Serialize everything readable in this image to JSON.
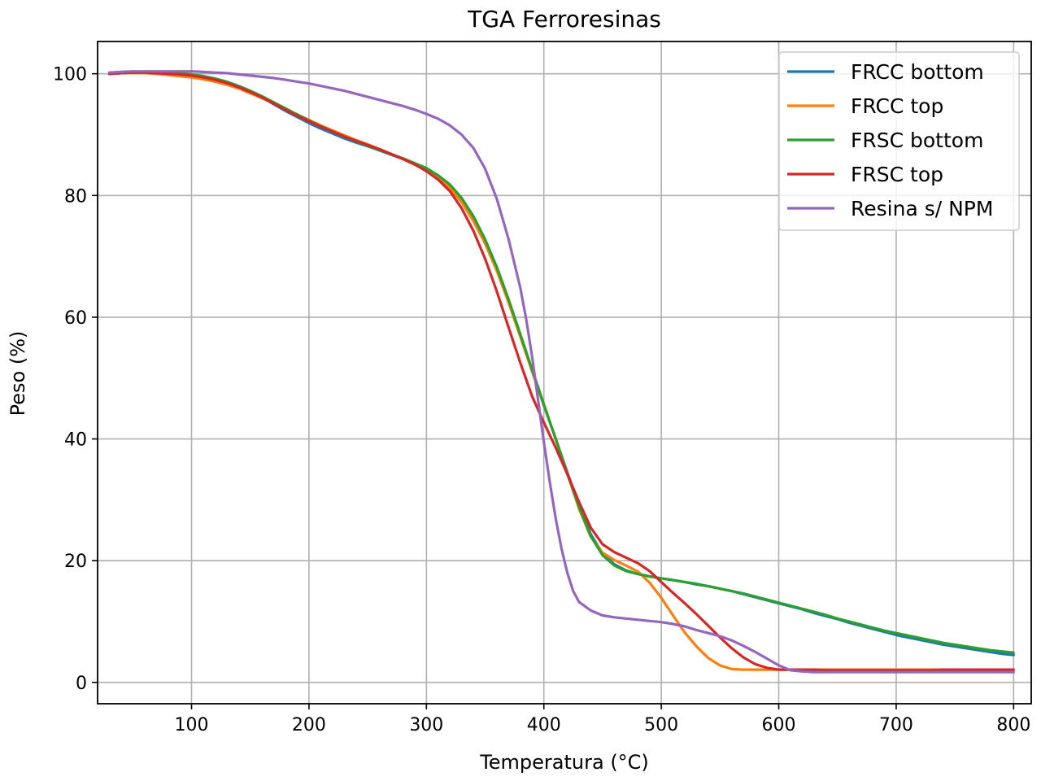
{
  "chart_data": {
    "type": "line",
    "title": "TGA Ferroresinas",
    "xlabel": "Temperatura (°C)",
    "ylabel": "Peso (%)",
    "xlim": [
      20,
      815
    ],
    "ylim": [
      -3.5,
      105.3
    ],
    "xticks": [
      100,
      200,
      300,
      400,
      500,
      600,
      700,
      800
    ],
    "yticks": [
      0,
      20,
      40,
      60,
      80,
      100
    ],
    "grid": true,
    "legend_position": "top-right",
    "series": [
      {
        "name": "FRCC bottom",
        "color": "#1f77b4",
        "x": [
          30,
          40,
          50,
          60,
          70,
          80,
          90,
          100,
          110,
          120,
          130,
          140,
          150,
          160,
          170,
          180,
          190,
          200,
          210,
          220,
          230,
          240,
          250,
          260,
          270,
          280,
          290,
          300,
          310,
          320,
          330,
          340,
          350,
          360,
          370,
          380,
          390,
          400,
          410,
          420,
          430,
          440,
          450,
          460,
          470,
          480,
          490,
          500,
          510,
          520,
          530,
          540,
          550,
          560,
          570,
          580,
          590,
          600,
          610,
          620,
          630,
          640,
          650,
          660,
          670,
          680,
          690,
          700,
          710,
          720,
          730,
          740,
          750,
          760,
          770,
          780,
          790,
          800
        ],
        "y": [
          100.0,
          100.1,
          100.2,
          100.2,
          100.2,
          100.1,
          100.0,
          99.8,
          99.5,
          99.0,
          98.5,
          97.8,
          97.0,
          96.1,
          95.0,
          93.9,
          92.9,
          91.9,
          91.0,
          90.2,
          89.4,
          88.7,
          88.1,
          87.4,
          86.7,
          86.0,
          85.2,
          84.2,
          83.0,
          81.3,
          79.0,
          76.0,
          72.3,
          67.8,
          62.5,
          56.9,
          51.1,
          45.5,
          40.1,
          34.5,
          29.0,
          24.3,
          21.2,
          19.4,
          18.4,
          17.8,
          17.4,
          17.1,
          16.8,
          16.5,
          16.1,
          15.8,
          15.4,
          15.0,
          14.5,
          14.0,
          13.5,
          13.0,
          12.5,
          12.0,
          11.4,
          10.9,
          10.4,
          9.8,
          9.3,
          8.8,
          8.3,
          7.8,
          7.4,
          7.0,
          6.6,
          6.2,
          5.9,
          5.6,
          5.3,
          5.0,
          4.7,
          4.5
        ]
      },
      {
        "name": "FRCC top",
        "color": "#ff7f0e",
        "x": [
          30,
          40,
          50,
          60,
          70,
          80,
          90,
          100,
          110,
          120,
          130,
          140,
          150,
          160,
          170,
          180,
          190,
          200,
          210,
          220,
          230,
          240,
          250,
          260,
          270,
          280,
          290,
          300,
          310,
          320,
          330,
          340,
          350,
          360,
          370,
          380,
          390,
          400,
          410,
          420,
          430,
          440,
          450,
          460,
          470,
          480,
          490,
          500,
          510,
          520,
          530,
          540,
          550,
          560,
          570,
          580,
          590,
          600,
          610,
          620,
          630,
          640,
          650,
          660,
          670,
          680,
          690,
          700,
          710,
          720,
          730,
          740,
          750,
          760,
          770,
          780,
          790,
          800
        ],
        "y": [
          100.0,
          100.1,
          100.1,
          100.1,
          100.0,
          99.8,
          99.6,
          99.4,
          99.1,
          98.7,
          98.2,
          97.6,
          96.8,
          96.0,
          95.1,
          94.2,
          93.3,
          92.4,
          91.5,
          90.7,
          89.9,
          89.1,
          88.4,
          87.6,
          86.8,
          86.0,
          85.1,
          84.1,
          82.9,
          81.2,
          78.9,
          75.8,
          72.1,
          67.6,
          62.4,
          56.8,
          51.1,
          45.6,
          40.1,
          34.3,
          28.5,
          23.9,
          21.3,
          20.1,
          19.2,
          18.2,
          16.4,
          13.9,
          11.0,
          8.2,
          5.9,
          4.0,
          2.8,
          2.2,
          2.1,
          2.1,
          2.1,
          2.1,
          2.1,
          2.1,
          2.1,
          2.1,
          2.1,
          2.1,
          2.1,
          2.1,
          2.1,
          2.1,
          2.1,
          2.1,
          2.1,
          2.1,
          2.1,
          2.1,
          2.1,
          2.1,
          2.1,
          2.1
        ]
      },
      {
        "name": "FRSC bottom",
        "color": "#2ca02c",
        "x": [
          30,
          40,
          50,
          60,
          70,
          80,
          90,
          100,
          110,
          120,
          130,
          140,
          150,
          160,
          170,
          180,
          190,
          200,
          210,
          220,
          230,
          240,
          250,
          260,
          270,
          280,
          290,
          300,
          310,
          320,
          330,
          340,
          350,
          360,
          370,
          380,
          390,
          400,
          410,
          420,
          430,
          440,
          450,
          460,
          470,
          480,
          490,
          500,
          510,
          520,
          530,
          540,
          550,
          560,
          570,
          580,
          590,
          600,
          610,
          620,
          630,
          640,
          650,
          660,
          670,
          680,
          690,
          700,
          710,
          720,
          730,
          740,
          750,
          760,
          770,
          780,
          790,
          800
        ],
        "y": [
          100.0,
          100.1,
          100.2,
          100.2,
          100.2,
          100.2,
          100.1,
          99.9,
          99.6,
          99.2,
          98.7,
          98.0,
          97.2,
          96.3,
          95.3,
          94.3,
          93.3,
          92.3,
          91.4,
          90.5,
          89.7,
          88.9,
          88.2,
          87.5,
          86.8,
          86.1,
          85.3,
          84.5,
          83.3,
          81.8,
          79.6,
          76.6,
          72.8,
          68.2,
          62.9,
          57.2,
          51.4,
          45.7,
          40.0,
          34.3,
          28.8,
          24.0,
          20.9,
          19.2,
          18.3,
          17.8,
          17.4,
          17.1,
          16.8,
          16.5,
          16.2,
          15.8,
          15.4,
          15.0,
          14.6,
          14.1,
          13.6,
          13.1,
          12.6,
          12.1,
          11.6,
          11.1,
          10.5,
          10.0,
          9.5,
          9.0,
          8.5,
          8.1,
          7.7,
          7.3,
          6.9,
          6.5,
          6.2,
          5.9,
          5.6,
          5.3,
          5.1,
          4.9
        ]
      },
      {
        "name": "FRSC top",
        "color": "#d62728",
        "x": [
          30,
          40,
          50,
          60,
          70,
          80,
          90,
          100,
          110,
          120,
          130,
          140,
          150,
          160,
          170,
          180,
          190,
          200,
          210,
          220,
          230,
          240,
          250,
          260,
          270,
          280,
          290,
          300,
          310,
          320,
          330,
          340,
          350,
          360,
          370,
          380,
          390,
          400,
          410,
          420,
          430,
          440,
          450,
          460,
          470,
          480,
          490,
          500,
          510,
          520,
          530,
          540,
          550,
          560,
          570,
          580,
          590,
          600,
          610,
          620,
          630,
          640,
          650,
          660,
          670,
          680,
          690,
          700,
          710,
          720,
          730,
          740,
          750,
          760,
          770,
          780,
          790,
          800
        ],
        "y": [
          100.0,
          100.1,
          100.2,
          100.2,
          100.1,
          100.0,
          99.9,
          99.7,
          99.4,
          99.0,
          98.5,
          97.8,
          97.0,
          96.1,
          95.1,
          94.1,
          93.1,
          92.2,
          91.3,
          90.5,
          89.7,
          89.0,
          88.3,
          87.6,
          86.8,
          86.0,
          85.1,
          84.0,
          82.6,
          80.7,
          77.9,
          74.2,
          69.6,
          64.2,
          58.3,
          52.5,
          47.0,
          42.7,
          38.6,
          34.2,
          29.6,
          25.4,
          22.7,
          21.4,
          20.5,
          19.6,
          18.3,
          16.5,
          14.7,
          13.0,
          11.2,
          9.3,
          7.4,
          5.6,
          4.1,
          3.0,
          2.4,
          2.1,
          2.1,
          2.1,
          2.1,
          2.0,
          2.0,
          2.0,
          2.0,
          2.0,
          2.0,
          2.0,
          2.0,
          2.0,
          2.0,
          2.1,
          2.1,
          2.1,
          2.1,
          2.1,
          2.1,
          2.1
        ]
      },
      {
        "name": "Resina s/ NPM",
        "color": "#9467bd",
        "x": [
          30,
          40,
          50,
          60,
          70,
          80,
          90,
          100,
          110,
          120,
          130,
          140,
          150,
          160,
          170,
          180,
          190,
          200,
          210,
          220,
          230,
          240,
          250,
          260,
          270,
          280,
          290,
          300,
          310,
          320,
          330,
          340,
          350,
          360,
          370,
          380,
          385,
          390,
          395,
          400,
          405,
          410,
          415,
          420,
          425,
          430,
          440,
          450,
          460,
          470,
          480,
          490,
          500,
          510,
          520,
          530,
          540,
          550,
          560,
          570,
          580,
          590,
          600,
          610,
          620,
          630,
          640,
          650,
          660,
          670,
          680,
          690,
          700,
          710,
          720,
          730,
          740,
          750,
          760,
          770,
          780,
          790,
          800
        ],
        "y": [
          100.2,
          100.3,
          100.4,
          100.4,
          100.4,
          100.4,
          100.4,
          100.4,
          100.3,
          100.2,
          100.1,
          99.9,
          99.7,
          99.5,
          99.3,
          99.0,
          98.7,
          98.4,
          98.0,
          97.6,
          97.2,
          96.7,
          96.2,
          95.7,
          95.2,
          94.7,
          94.1,
          93.4,
          92.6,
          91.5,
          90.0,
          87.8,
          84.4,
          79.4,
          72.8,
          64.8,
          59.6,
          53.5,
          46.5,
          39.5,
          33.0,
          27.0,
          22.0,
          18.0,
          15.0,
          13.2,
          11.8,
          11.0,
          10.7,
          10.5,
          10.3,
          10.1,
          9.9,
          9.6,
          9.2,
          8.6,
          8.1,
          7.6,
          6.9,
          6.0,
          5.0,
          3.9,
          2.8,
          2.0,
          1.8,
          1.7,
          1.7,
          1.7,
          1.7,
          1.7,
          1.7,
          1.7,
          1.7,
          1.7,
          1.7,
          1.7,
          1.7,
          1.7,
          1.7,
          1.7,
          1.7,
          1.7,
          1.7
        ]
      }
    ]
  }
}
